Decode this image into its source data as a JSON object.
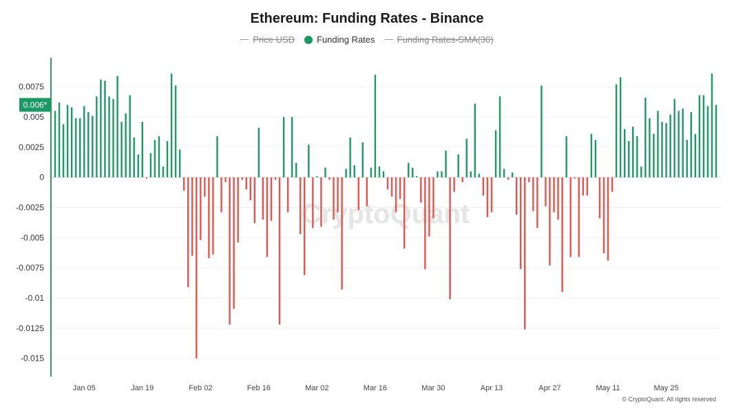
{
  "chart_data": {
    "type": "bar",
    "title": "Ethereum: Funding Rates - Binance",
    "legend": [
      {
        "label": "Price USD",
        "active": false
      },
      {
        "label": "Funding Rates",
        "active": true
      },
      {
        "label": "Funding Rates-SMA(30)",
        "active": false
      }
    ],
    "watermark": "CryptoQuant",
    "current_value_label": "0.006*",
    "current_value": 0.006,
    "ylim": [
      -0.0165,
      0.0099
    ],
    "yticks": [
      0.0075,
      0.005,
      0.0025,
      0,
      -0.0025,
      -0.005,
      -0.0075,
      -0.01,
      -0.0125,
      -0.015
    ],
    "ytick_labels": [
      "0.0075",
      "0.005",
      "0.0025",
      "0",
      "-0.0025",
      "-0.005",
      "-0.0075",
      "-0.01",
      "-0.0125",
      "-0.015"
    ],
    "xtick_labels": [
      "Jan 05",
      "Jan 19",
      "Feb 02",
      "Feb 16",
      "Mar 02",
      "Mar 16",
      "Mar 30",
      "Apr 13",
      "Apr 27",
      "May 11",
      "May 25"
    ],
    "xtick_index": [
      7,
      21,
      35,
      49,
      63,
      77,
      91,
      105,
      119,
      133,
      147
    ],
    "first_date": "Dec 30",
    "grid": true,
    "colors": {
      "positive": "#1a9a62",
      "negative": "#e8524a",
      "axis": "#2a9a62",
      "grid": "#f0f0f0"
    },
    "series": [
      {
        "name": "Funding Rates",
        "values": [
          0.0055,
          0.0062,
          0.0044,
          0.006,
          0.0058,
          0.0049,
          0.0049,
          0.0059,
          0.0054,
          0.0051,
          0.0067,
          0.0081,
          0.008,
          0.0067,
          0.0065,
          0.0084,
          0.0046,
          0.0053,
          0.0068,
          0.0033,
          0.0019,
          0.0046,
          -0.0001,
          0.002,
          0.0031,
          0.0034,
          0.0009,
          0.003,
          0.0086,
          0.0076,
          0.0023,
          -0.0011,
          -0.0091,
          -0.0065,
          -0.015,
          -0.0052,
          -0.0016,
          -0.0067,
          -0.0064,
          0.0034,
          -0.0029,
          -0.0004,
          -0.0122,
          -0.0109,
          -0.0054,
          -0.0002,
          -0.001,
          -0.0019,
          -0.0038,
          0.0041,
          -0.0035,
          -0.0066,
          -0.0036,
          -0.0002,
          -0.0122,
          0.005,
          -0.0029,
          0.005,
          0.0012,
          -0.0047,
          -0.0081,
          0.0027,
          -0.0042,
          0.0001,
          -0.0041,
          0.0008,
          -0.0002,
          -0.0035,
          -0.0029,
          -0.0093,
          0.0007,
          0.0033,
          0.001,
          -0.0027,
          0.0029,
          -0.0024,
          0.0008,
          0.0085,
          0.0009,
          0.0005,
          -0.001,
          -0.0016,
          -0.0029,
          -0.0018,
          -0.0059,
          0.0012,
          0.0008,
          0.0001,
          -0.0021,
          -0.0076,
          -0.0049,
          -0.0034,
          0.0005,
          0.0005,
          0.0022,
          -0.0101,
          -0.0012,
          0.0019,
          -0.0004,
          0.0032,
          0.0005,
          0.0061,
          0.0003,
          -0.0015,
          -0.0033,
          -0.0029,
          0.0039,
          0.0067,
          0.0007,
          -0.0002,
          0.0004,
          -0.0031,
          -0.0076,
          -0.0126,
          -0.0004,
          -0.0028,
          -0.0042,
          0.0076,
          -0.0024,
          -0.0073,
          -0.0029,
          -0.0035,
          -0.0095,
          0.0034,
          -0.0066,
          -0.0001,
          -0.0066,
          -0.0015,
          -0.0015,
          0.0036,
          0.0031,
          -0.0034,
          -0.0063,
          -0.0069,
          -0.0012,
          0.0077,
          0.0083,
          0.004,
          0.003,
          0.0042,
          0.0034,
          0.0009,
          0.0066,
          0.0049,
          0.0036,
          0.0055,
          0.0046,
          0.0045,
          0.0052,
          0.0065,
          0.0055,
          0.0057,
          0.0031,
          0.0054,
          0.0036,
          0.0068,
          0.0068,
          0.0059,
          0.0086,
          0.006
        ]
      }
    ]
  },
  "copyright": "© CryptoQuant. All rights reserved"
}
